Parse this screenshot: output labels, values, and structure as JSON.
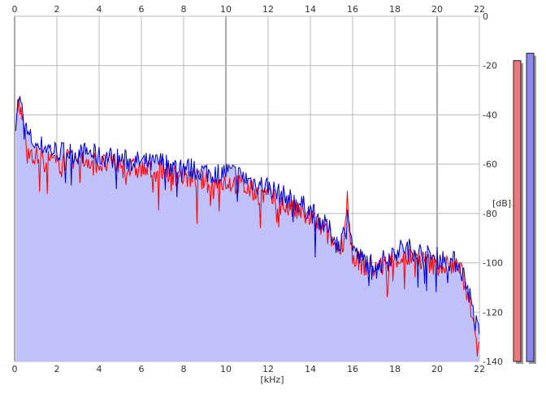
{
  "chart_data": {
    "type": "area",
    "title": "",
    "xlabel": "[kHz]",
    "ylabel": "[dB]",
    "xlim": [
      0,
      22
    ],
    "ylim": [
      -140,
      0
    ],
    "x_ticks": [
      0,
      2,
      4,
      6,
      8,
      10,
      12,
      14,
      16,
      18,
      20,
      22
    ],
    "x_tick_labels": [
      "0",
      "2",
      "4",
      "6",
      "8",
      "10",
      "12",
      "14",
      "16",
      "18",
      "20",
      "22"
    ],
    "y_ticks": [
      0,
      -20,
      -40,
      -60,
      -80,
      -100,
      -120,
      -140
    ],
    "y_tick_labels": [
      "0",
      "-20",
      "-40",
      "-60",
      "-80",
      "-100",
      "-120",
      "-140"
    ],
    "grid": true,
    "series": [
      {
        "color": "#ff0000",
        "x": [
          0.05,
          0.2,
          0.4,
          0.6,
          0.8,
          1.0,
          1.5,
          2.0,
          2.5,
          3.0,
          3.5,
          4.0,
          4.5,
          5.0,
          5.5,
          6.0,
          6.5,
          7.0,
          7.5,
          8.0,
          8.5,
          9.0,
          9.5,
          10.0,
          10.5,
          11.0,
          11.5,
          12.0,
          12.5,
          13.0,
          13.5,
          14.0,
          14.5,
          15.0,
          15.3,
          15.6,
          15.75,
          15.9,
          16.2,
          16.5,
          17.0,
          17.5,
          18.0,
          18.5,
          19.0,
          19.5,
          20.0,
          20.5,
          21.0,
          21.3,
          21.6,
          21.8,
          22.0
        ],
        "y": [
          -45,
          -35,
          -43,
          -52,
          -55,
          -57,
          -58,
          -60,
          -58,
          -59,
          -58,
          -60,
          -60,
          -61,
          -62,
          -62,
          -63,
          -62,
          -64,
          -65,
          -66,
          -67,
          -68,
          -67,
          -68,
          -70,
          -72,
          -73,
          -76,
          -78,
          -80,
          -82,
          -86,
          -90,
          -95,
          -90,
          -72,
          -93,
          -99,
          -101,
          -102,
          -101,
          -98,
          -98,
          -98,
          -100,
          -101,
          -101,
          -101,
          -108,
          -118,
          -126,
          -132
        ]
      },
      {
        "color": "#0000cc",
        "x": [
          0.05,
          0.2,
          0.4,
          0.6,
          0.8,
          1.0,
          1.5,
          2.0,
          2.5,
          3.0,
          3.5,
          4.0,
          4.5,
          5.0,
          5.5,
          6.0,
          6.5,
          7.0,
          7.5,
          8.0,
          8.5,
          9.0,
          9.5,
          10.0,
          10.5,
          11.0,
          11.5,
          12.0,
          12.5,
          13.0,
          13.5,
          14.0,
          14.5,
          15.0,
          15.3,
          15.6,
          15.75,
          15.9,
          16.2,
          16.5,
          17.0,
          17.5,
          18.0,
          18.5,
          19.0,
          19.5,
          20.0,
          20.5,
          21.0,
          21.3,
          21.6,
          21.8,
          22.0
        ],
        "y": [
          -42,
          -33,
          -40,
          -48,
          -50,
          -52,
          -53,
          -55,
          -55,
          -56,
          -55,
          -57,
          -57,
          -58,
          -59,
          -59,
          -60,
          -59,
          -61,
          -61,
          -62,
          -63,
          -64,
          -63,
          -64,
          -66,
          -68,
          -69,
          -72,
          -74,
          -76,
          -79,
          -83,
          -88,
          -93,
          -88,
          -75,
          -90,
          -97,
          -99,
          -100,
          -99,
          -95,
          -94,
          -95,
          -97,
          -98,
          -99,
          -100,
          -106,
          -115,
          -124,
          -129
        ]
      }
    ],
    "level_meters": [
      {
        "color": "#f07878",
        "level_db": -18
      },
      {
        "color": "#8888ee",
        "level_db": -15
      }
    ]
  }
}
